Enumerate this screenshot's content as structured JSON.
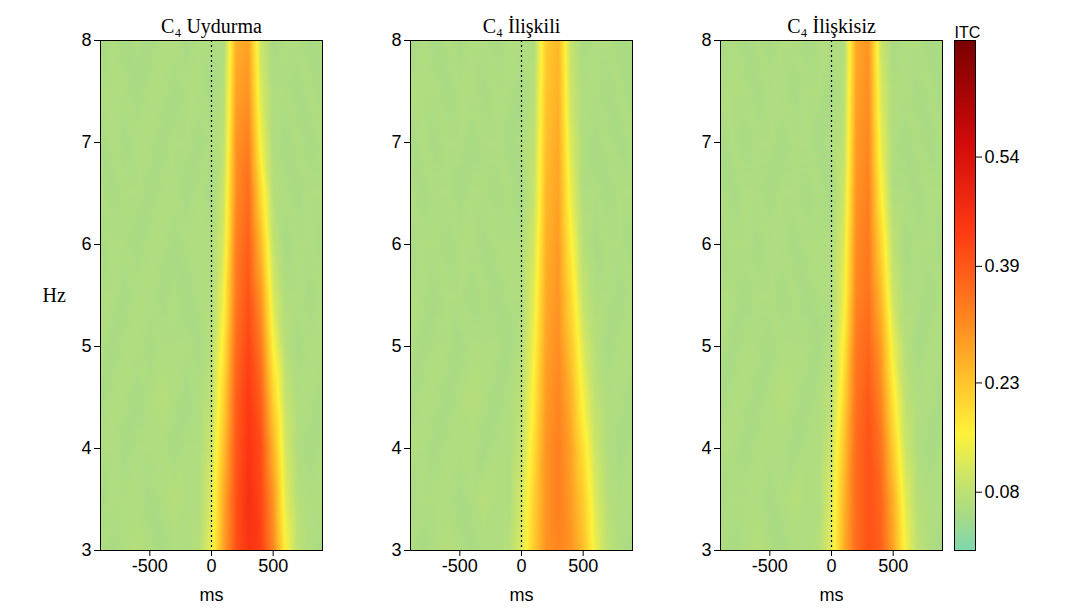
{
  "chart_data": [
    {
      "type": "heatmap",
      "title": "C₄ Uydurma",
      "xlabel": "ms",
      "ylabel": "Hz",
      "xlim": [
        -900,
        900
      ],
      "xticks": [
        -500,
        0,
        500
      ],
      "ylim": [
        3,
        8
      ],
      "yticks": [
        3,
        4,
        5,
        6,
        7,
        8
      ],
      "onset_line": 0,
      "x": [
        -900,
        -800,
        -700,
        -600,
        -500,
        -400,
        -300,
        -200,
        -100,
        0,
        100,
        200,
        300,
        400,
        500,
        600,
        700,
        800,
        900
      ],
      "y": [
        3,
        3.5,
        4,
        4.5,
        5,
        5.5,
        6,
        6.5,
        7,
        7.5,
        8
      ],
      "values": [
        [
          0.06,
          0.05,
          0.06,
          0.07,
          0.06,
          0.05,
          0.06,
          0.06,
          0.07,
          0.14,
          0.28,
          0.4,
          0.45,
          0.43,
          0.32,
          0.16,
          0.08,
          0.06,
          0.05
        ],
        [
          0.05,
          0.06,
          0.06,
          0.06,
          0.05,
          0.06,
          0.07,
          0.06,
          0.06,
          0.12,
          0.27,
          0.4,
          0.46,
          0.42,
          0.3,
          0.13,
          0.07,
          0.06,
          0.06
        ],
        [
          0.06,
          0.06,
          0.05,
          0.06,
          0.06,
          0.06,
          0.05,
          0.06,
          0.06,
          0.1,
          0.24,
          0.39,
          0.45,
          0.41,
          0.26,
          0.11,
          0.06,
          0.05,
          0.06
        ],
        [
          0.05,
          0.06,
          0.06,
          0.05,
          0.06,
          0.07,
          0.06,
          0.05,
          0.06,
          0.08,
          0.21,
          0.38,
          0.44,
          0.38,
          0.21,
          0.09,
          0.06,
          0.06,
          0.05
        ],
        [
          0.06,
          0.05,
          0.06,
          0.06,
          0.05,
          0.06,
          0.06,
          0.06,
          0.05,
          0.07,
          0.18,
          0.36,
          0.42,
          0.34,
          0.16,
          0.07,
          0.05,
          0.06,
          0.06
        ],
        [
          0.06,
          0.06,
          0.05,
          0.06,
          0.06,
          0.05,
          0.06,
          0.05,
          0.06,
          0.06,
          0.15,
          0.34,
          0.4,
          0.3,
          0.12,
          0.06,
          0.06,
          0.05,
          0.06
        ],
        [
          0.05,
          0.06,
          0.06,
          0.05,
          0.06,
          0.06,
          0.05,
          0.06,
          0.06,
          0.06,
          0.12,
          0.33,
          0.38,
          0.25,
          0.09,
          0.05,
          0.06,
          0.06,
          0.05
        ],
        [
          0.06,
          0.05,
          0.06,
          0.06,
          0.05,
          0.06,
          0.06,
          0.05,
          0.06,
          0.05,
          0.1,
          0.31,
          0.36,
          0.2,
          0.07,
          0.06,
          0.05,
          0.06,
          0.06
        ],
        [
          0.05,
          0.06,
          0.05,
          0.06,
          0.06,
          0.05,
          0.06,
          0.06,
          0.05,
          0.06,
          0.08,
          0.3,
          0.33,
          0.15,
          0.06,
          0.05,
          0.06,
          0.05,
          0.06
        ],
        [
          0.06,
          0.06,
          0.06,
          0.05,
          0.06,
          0.06,
          0.05,
          0.06,
          0.06,
          0.05,
          0.07,
          0.28,
          0.3,
          0.12,
          0.06,
          0.06,
          0.05,
          0.06,
          0.05
        ],
        [
          0.05,
          0.06,
          0.05,
          0.06,
          0.05,
          0.06,
          0.06,
          0.05,
          0.06,
          0.06,
          0.06,
          0.26,
          0.28,
          0.1,
          0.05,
          0.06,
          0.06,
          0.05,
          0.06
        ]
      ]
    },
    {
      "type": "heatmap",
      "title": "C₄ İlişkili",
      "xlabel": "ms",
      "xlim": [
        -900,
        900
      ],
      "xticks": [
        -500,
        0,
        500
      ],
      "ylim": [
        3,
        8
      ],
      "yticks": [
        3,
        4,
        5,
        6,
        7,
        8
      ],
      "onset_line": 0,
      "x": [
        -900,
        -800,
        -700,
        -600,
        -500,
        -400,
        -300,
        -200,
        -100,
        0,
        100,
        200,
        300,
        400,
        500,
        600,
        700,
        800,
        900
      ],
      "y": [
        3,
        3.5,
        4,
        4.5,
        5,
        5.5,
        6,
        6.5,
        7,
        7.5,
        8
      ],
      "values": [
        [
          0.06,
          0.05,
          0.06,
          0.07,
          0.06,
          0.05,
          0.06,
          0.06,
          0.07,
          0.12,
          0.22,
          0.3,
          0.32,
          0.3,
          0.24,
          0.14,
          0.08,
          0.06,
          0.05
        ],
        [
          0.05,
          0.06,
          0.06,
          0.06,
          0.05,
          0.06,
          0.07,
          0.06,
          0.06,
          0.11,
          0.21,
          0.3,
          0.33,
          0.29,
          0.22,
          0.12,
          0.07,
          0.06,
          0.06
        ],
        [
          0.06,
          0.06,
          0.05,
          0.06,
          0.06,
          0.06,
          0.05,
          0.06,
          0.06,
          0.09,
          0.19,
          0.3,
          0.33,
          0.28,
          0.19,
          0.1,
          0.06,
          0.05,
          0.06
        ],
        [
          0.05,
          0.06,
          0.06,
          0.05,
          0.06,
          0.07,
          0.06,
          0.05,
          0.06,
          0.08,
          0.17,
          0.29,
          0.32,
          0.26,
          0.15,
          0.08,
          0.06,
          0.06,
          0.05
        ],
        [
          0.06,
          0.05,
          0.06,
          0.06,
          0.05,
          0.06,
          0.06,
          0.06,
          0.05,
          0.07,
          0.15,
          0.28,
          0.31,
          0.23,
          0.12,
          0.07,
          0.05,
          0.06,
          0.06
        ],
        [
          0.06,
          0.06,
          0.05,
          0.06,
          0.06,
          0.05,
          0.06,
          0.05,
          0.06,
          0.06,
          0.13,
          0.27,
          0.3,
          0.2,
          0.09,
          0.06,
          0.06,
          0.05,
          0.06
        ],
        [
          0.05,
          0.06,
          0.06,
          0.05,
          0.06,
          0.06,
          0.05,
          0.06,
          0.06,
          0.06,
          0.11,
          0.26,
          0.29,
          0.17,
          0.07,
          0.05,
          0.06,
          0.06,
          0.05
        ],
        [
          0.06,
          0.05,
          0.06,
          0.06,
          0.05,
          0.06,
          0.06,
          0.05,
          0.06,
          0.05,
          0.09,
          0.25,
          0.28,
          0.14,
          0.06,
          0.06,
          0.05,
          0.06,
          0.06
        ],
        [
          0.05,
          0.06,
          0.05,
          0.06,
          0.06,
          0.05,
          0.06,
          0.06,
          0.05,
          0.06,
          0.08,
          0.24,
          0.27,
          0.12,
          0.06,
          0.05,
          0.06,
          0.05,
          0.06
        ],
        [
          0.06,
          0.06,
          0.06,
          0.05,
          0.06,
          0.06,
          0.05,
          0.06,
          0.06,
          0.05,
          0.07,
          0.23,
          0.26,
          0.1,
          0.06,
          0.06,
          0.05,
          0.06,
          0.05
        ],
        [
          0.05,
          0.06,
          0.05,
          0.06,
          0.05,
          0.06,
          0.06,
          0.05,
          0.06,
          0.06,
          0.06,
          0.22,
          0.25,
          0.09,
          0.05,
          0.06,
          0.06,
          0.05,
          0.06
        ]
      ]
    },
    {
      "type": "heatmap",
      "title": "C₄ İlişkisiz",
      "xlabel": "ms",
      "xlim": [
        -900,
        900
      ],
      "xticks": [
        -500,
        0,
        500
      ],
      "ylim": [
        3,
        8
      ],
      "yticks": [
        3,
        4,
        5,
        6,
        7,
        8
      ],
      "onset_line": 0,
      "x": [
        -900,
        -800,
        -700,
        -600,
        -500,
        -400,
        -300,
        -200,
        -100,
        0,
        100,
        200,
        300,
        400,
        500,
        600,
        700,
        800,
        900
      ],
      "y": [
        3,
        3.5,
        4,
        4.5,
        5,
        5.5,
        6,
        6.5,
        7,
        7.5,
        8
      ],
      "values": [
        [
          0.06,
          0.05,
          0.06,
          0.07,
          0.06,
          0.05,
          0.06,
          0.06,
          0.07,
          0.13,
          0.26,
          0.36,
          0.4,
          0.38,
          0.28,
          0.15,
          0.08,
          0.06,
          0.05
        ],
        [
          0.05,
          0.06,
          0.06,
          0.06,
          0.05,
          0.06,
          0.07,
          0.06,
          0.06,
          0.12,
          0.25,
          0.36,
          0.4,
          0.37,
          0.26,
          0.13,
          0.07,
          0.06,
          0.06
        ],
        [
          0.06,
          0.06,
          0.05,
          0.06,
          0.06,
          0.06,
          0.05,
          0.06,
          0.06,
          0.1,
          0.23,
          0.36,
          0.4,
          0.35,
          0.22,
          0.1,
          0.06,
          0.05,
          0.06
        ],
        [
          0.05,
          0.06,
          0.06,
          0.05,
          0.06,
          0.07,
          0.06,
          0.05,
          0.06,
          0.08,
          0.2,
          0.35,
          0.39,
          0.32,
          0.18,
          0.08,
          0.06,
          0.06,
          0.05
        ],
        [
          0.06,
          0.05,
          0.06,
          0.06,
          0.05,
          0.06,
          0.06,
          0.06,
          0.05,
          0.07,
          0.17,
          0.34,
          0.37,
          0.29,
          0.14,
          0.07,
          0.05,
          0.06,
          0.06
        ],
        [
          0.06,
          0.06,
          0.05,
          0.06,
          0.06,
          0.05,
          0.06,
          0.05,
          0.06,
          0.06,
          0.14,
          0.32,
          0.35,
          0.25,
          0.1,
          0.06,
          0.06,
          0.05,
          0.06
        ],
        [
          0.05,
          0.06,
          0.06,
          0.05,
          0.06,
          0.06,
          0.05,
          0.06,
          0.06,
          0.06,
          0.12,
          0.31,
          0.34,
          0.21,
          0.08,
          0.05,
          0.06,
          0.06,
          0.05
        ],
        [
          0.06,
          0.05,
          0.06,
          0.06,
          0.05,
          0.06,
          0.06,
          0.05,
          0.06,
          0.05,
          0.1,
          0.3,
          0.33,
          0.17,
          0.06,
          0.06,
          0.05,
          0.06,
          0.06
        ],
        [
          0.05,
          0.06,
          0.05,
          0.06,
          0.06,
          0.05,
          0.06,
          0.06,
          0.05,
          0.06,
          0.08,
          0.29,
          0.32,
          0.14,
          0.06,
          0.05,
          0.06,
          0.05,
          0.06
        ],
        [
          0.06,
          0.06,
          0.06,
          0.05,
          0.06,
          0.06,
          0.05,
          0.06,
          0.06,
          0.05,
          0.07,
          0.28,
          0.31,
          0.12,
          0.06,
          0.06,
          0.05,
          0.06,
          0.05
        ],
        [
          0.05,
          0.06,
          0.05,
          0.06,
          0.05,
          0.06,
          0.06,
          0.05,
          0.06,
          0.06,
          0.06,
          0.27,
          0.3,
          0.1,
          0.05,
          0.06,
          0.06,
          0.05,
          0.06
        ]
      ],
      "colorbar": {
        "label": "ITC",
        "range": [
          0,
          0.7
        ],
        "ticks": [
          0.08,
          0.23,
          0.39,
          0.54
        ]
      }
    }
  ]
}
